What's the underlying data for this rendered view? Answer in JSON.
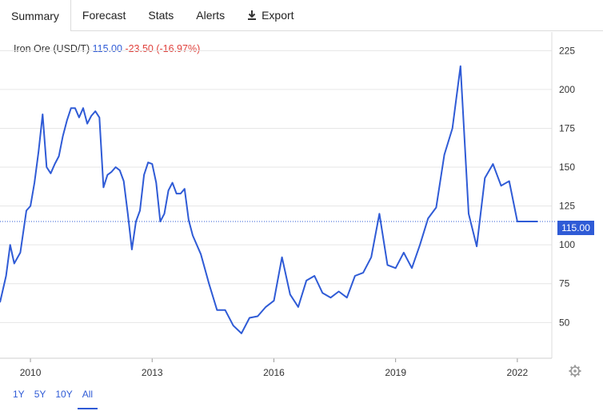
{
  "tabs": {
    "summary": "Summary",
    "forecast": "Forecast",
    "stats": "Stats",
    "alerts": "Alerts",
    "export": "Export"
  },
  "quote": {
    "name": "Iron Ore (USD/T)",
    "price": "115.00",
    "change": "-23.50 (-16.97%)"
  },
  "range": [
    "1Y",
    "5Y",
    "10Y",
    "All"
  ],
  "last_value_label": "115.00",
  "colors": {
    "line": "#2f5bd6",
    "down": "#e0403b",
    "grid": "#e6e6e6"
  },
  "chart_data": {
    "type": "line",
    "title": "",
    "xlabel": "",
    "ylabel": "",
    "ylim": [
      27,
      237
    ],
    "xlim": [
      2009.25,
      2022.85
    ],
    "y_ticks": [
      50,
      75,
      100,
      125,
      150,
      175,
      200,
      225
    ],
    "x_ticks": [
      2010,
      2013,
      2016,
      2019,
      2022
    ],
    "last_value": 115.0,
    "series": [
      {
        "name": "",
        "x": [
          2009.25,
          2009.4,
          2009.5,
          2009.6,
          2009.75,
          2009.9,
          2010.0,
          2010.1,
          2010.2,
          2010.3,
          2010.4,
          2010.5,
          2010.6,
          2010.7,
          2010.8,
          2010.9,
          2011.0,
          2011.1,
          2011.2,
          2011.3,
          2011.4,
          2011.5,
          2011.6,
          2011.7,
          2011.8,
          2011.9,
          2012.0,
          2012.1,
          2012.2,
          2012.3,
          2012.4,
          2012.5,
          2012.6,
          2012.7,
          2012.8,
          2012.9,
          2013.0,
          2013.1,
          2013.2,
          2013.3,
          2013.4,
          2013.5,
          2013.6,
          2013.7,
          2013.8,
          2013.9,
          2014.0,
          2014.2,
          2014.4,
          2014.6,
          2014.8,
          2015.0,
          2015.2,
          2015.4,
          2015.6,
          2015.8,
          2016.0,
          2016.2,
          2016.4,
          2016.6,
          2016.8,
          2017.0,
          2017.2,
          2017.4,
          2017.6,
          2017.8,
          2018.0,
          2018.2,
          2018.4,
          2018.6,
          2018.8,
          2019.0,
          2019.2,
          2019.4,
          2019.6,
          2019.8,
          2020.0,
          2020.2,
          2020.4,
          2020.6,
          2020.8,
          2021.0,
          2021.2,
          2021.4,
          2021.6,
          2021.8,
          2022.0,
          2022.1,
          2022.2,
          2022.3,
          2022.4,
          2022.5
        ],
        "y": [
          63,
          80,
          100,
          88,
          95,
          122,
          125,
          140,
          160,
          184,
          150,
          146,
          152,
          157,
          170,
          180,
          188,
          188,
          182,
          188,
          178,
          183,
          186,
          182,
          137,
          145,
          147,
          150,
          148,
          141,
          120,
          97,
          115,
          122,
          145,
          153,
          152,
          140,
          115,
          120,
          135,
          140,
          133,
          133,
          136,
          116,
          106,
          94,
          75,
          58,
          58,
          48,
          43,
          53,
          54,
          60,
          64,
          92,
          68,
          60,
          77,
          80,
          69,
          66,
          70,
          66,
          80,
          82,
          92,
          120,
          87,
          85,
          95,
          85,
          100,
          117,
          124,
          158,
          175,
          215,
          120,
          99,
          143,
          152,
          138,
          141,
          115,
          115,
          115,
          115,
          115,
          115
        ]
      }
    ]
  }
}
